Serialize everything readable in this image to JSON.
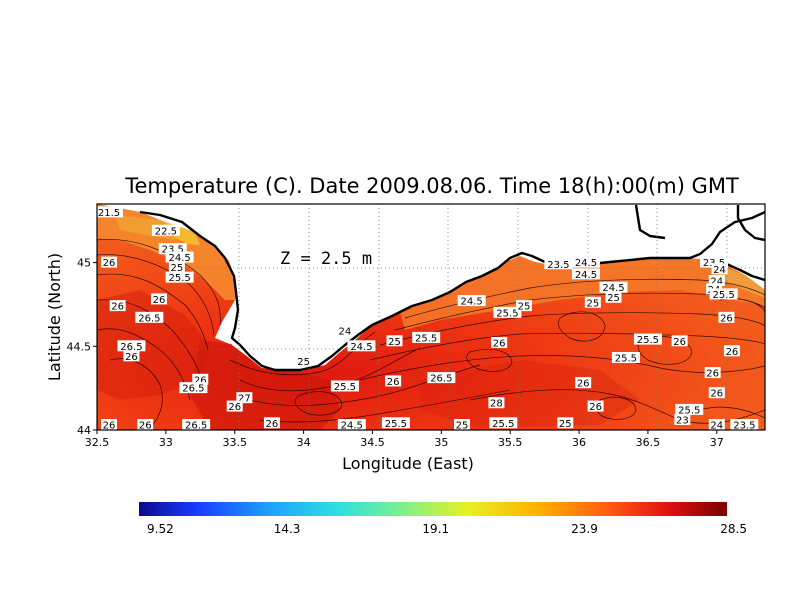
{
  "title": "Temperature (C). Date 2009.08.06. Time 18(h):00(m) GMT",
  "xlabel": "Longitude (East)",
  "ylabel": "Latitude (North)",
  "depth_label": "Z = 2.5 m",
  "x_ticks": [
    "32.5",
    "33",
    "33.5",
    "34",
    "34.5",
    "35",
    "35.5",
    "36",
    "36.5",
    "37"
  ],
  "y_ticks": [
    "44",
    "44.5",
    "45"
  ],
  "x_range": [
    32.5,
    37.35
  ],
  "y_range": [
    44.0,
    45.35
  ],
  "colorbar": {
    "ticks": [
      "9.52",
      "14.3",
      "19.1",
      "23.9",
      "28.5"
    ],
    "range": [
      9.52,
      28.5
    ],
    "colors": [
      "#0b0b8e",
      "#1a3cff",
      "#1ea0ff",
      "#2ee0e0",
      "#7ff08a",
      "#e8f020",
      "#ffb000",
      "#ff5a10",
      "#e01010",
      "#7a0000"
    ]
  },
  "contour_labels": [
    {
      "text": "21.5",
      "lon": 32.55,
      "lat": 45.3
    },
    {
      "text": "22.5",
      "lon": 33.0,
      "lat": 45.19
    },
    {
      "text": "23.5",
      "lon": 33.05,
      "lat": 45.08
    },
    {
      "text": "24.5",
      "lon": 33.1,
      "lat": 45.03
    },
    {
      "text": "25",
      "lon": 33.08,
      "lat": 44.97
    },
    {
      "text": "25.5",
      "lon": 33.1,
      "lat": 44.91
    },
    {
      "text": "26",
      "lon": 32.58,
      "lat": 45.0
    },
    {
      "text": "26",
      "lon": 32.65,
      "lat": 44.74
    },
    {
      "text": "26",
      "lon": 32.95,
      "lat": 44.78
    },
    {
      "text": "26.5",
      "lon": 32.88,
      "lat": 44.67
    },
    {
      "text": "26.5",
      "lon": 32.75,
      "lat": 44.5
    },
    {
      "text": "26",
      "lon": 32.75,
      "lat": 44.44
    },
    {
      "text": "26",
      "lon": 33.25,
      "lat": 44.3
    },
    {
      "text": "26.5",
      "lon": 33.2,
      "lat": 44.25
    },
    {
      "text": "27",
      "lon": 33.57,
      "lat": 44.19
    },
    {
      "text": "26",
      "lon": 33.5,
      "lat": 44.14
    },
    {
      "text": "26",
      "lon": 33.77,
      "lat": 44.04
    },
    {
      "text": "26.5",
      "lon": 33.22,
      "lat": 44.02
    },
    {
      "text": "26",
      "lon": 32.58,
      "lat": 44.0
    },
    {
      "text": "26",
      "lon": 32.85,
      "lat": 44.0
    },
    {
      "text": "24",
      "lon": 34.3,
      "lat": 44.59
    },
    {
      "text": "24.5",
      "lon": 34.42,
      "lat": 44.5
    },
    {
      "text": "25",
      "lon": 34.0,
      "lat": 44.41
    },
    {
      "text": "25.5",
      "lon": 34.3,
      "lat": 44.26
    },
    {
      "text": "25",
      "lon": 34.66,
      "lat": 44.53
    },
    {
      "text": "25.5",
      "lon": 34.89,
      "lat": 44.55
    },
    {
      "text": "26",
      "lon": 34.65,
      "lat": 44.29
    },
    {
      "text": "26.5",
      "lon": 35.0,
      "lat": 44.31
    },
    {
      "text": "26",
      "lon": 35.42,
      "lat": 44.52
    },
    {
      "text": "24.5",
      "lon": 35.22,
      "lat": 44.77
    },
    {
      "text": "25.5",
      "lon": 35.48,
      "lat": 44.7
    },
    {
      "text": "25",
      "lon": 35.6,
      "lat": 44.74
    },
    {
      "text": "28",
      "lon": 35.4,
      "lat": 44.16
    },
    {
      "text": "25.5",
      "lon": 34.67,
      "lat": 44.04
    },
    {
      "text": "25.5",
      "lon": 35.45,
      "lat": 44.04
    },
    {
      "text": "25",
      "lon": 35.9,
      "lat": 44.04
    },
    {
      "text": "24.5",
      "lon": 34.35,
      "lat": 44.0
    },
    {
      "text": "25",
      "lon": 35.15,
      "lat": 44.0
    },
    {
      "text": "23.5",
      "lon": 35.85,
      "lat": 44.99
    },
    {
      "text": "24.5",
      "lon": 36.05,
      "lat": 45.0
    },
    {
      "text": "24.5",
      "lon": 36.05,
      "lat": 44.93
    },
    {
      "text": "24.5",
      "lon": 36.25,
      "lat": 44.85
    },
    {
      "text": "25",
      "lon": 36.25,
      "lat": 44.79
    },
    {
      "text": "25",
      "lon": 36.1,
      "lat": 44.76
    },
    {
      "text": "25.5",
      "lon": 36.5,
      "lat": 44.54
    },
    {
      "text": "26",
      "lon": 36.73,
      "lat": 44.53
    },
    {
      "text": "25.5",
      "lon": 36.34,
      "lat": 44.43
    },
    {
      "text": "26",
      "lon": 36.03,
      "lat": 44.28
    },
    {
      "text": "26",
      "lon": 36.12,
      "lat": 44.14
    },
    {
      "text": "26",
      "lon": 36.97,
      "lat": 44.34
    },
    {
      "text": "26",
      "lon": 37.0,
      "lat": 44.22
    },
    {
      "text": "25.5",
      "lon": 36.8,
      "lat": 44.12
    },
    {
      "text": "23.5",
      "lon": 36.98,
      "lat": 45.0
    },
    {
      "text": "24",
      "lon": 37.02,
      "lat": 44.96
    },
    {
      "text": "24",
      "lon": 37.0,
      "lat": 44.89
    },
    {
      "text": "24",
      "lon": 36.98,
      "lat": 44.84
    },
    {
      "text": "25.5",
      "lon": 37.05,
      "lat": 44.81
    },
    {
      "text": "26",
      "lon": 37.07,
      "lat": 44.67
    },
    {
      "text": "26",
      "lon": 37.11,
      "lat": 44.47
    },
    {
      "text": "24",
      "lon": 37.0,
      "lat": 44.02
    },
    {
      "text": "23.5",
      "lon": 37.2,
      "lat": 44.0
    },
    {
      "text": "23",
      "lon": 36.75,
      "lat": 44.06
    }
  ]
}
